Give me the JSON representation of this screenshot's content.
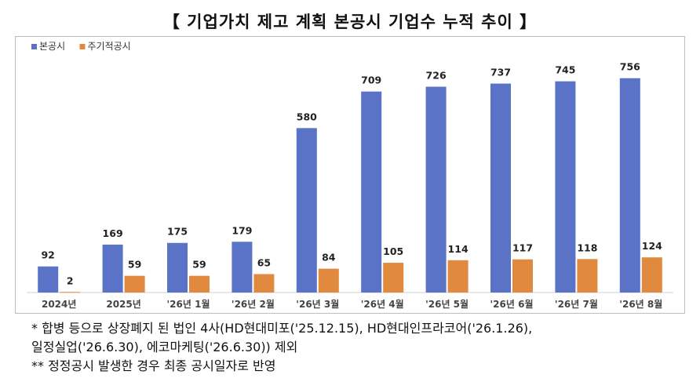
{
  "title": "【 기업가치 제고 계획 본공시 기업수 누적 추이 】",
  "chart_data": {
    "type": "bar",
    "title": "",
    "xlabel": "",
    "ylabel": "",
    "ylim": [
      0,
      800
    ],
    "grid": false,
    "legend_position": "top-left",
    "categories": [
      "2024년",
      "2025년",
      "'26년 1월",
      "'26년 2월",
      "'26년 3월",
      "'26년 4월",
      "'26년 5월",
      "'26년 6월",
      "'26년 7월",
      "'26년 8월"
    ],
    "series": [
      {
        "name": "본공시",
        "color": "#5b73c7",
        "values": [
          92,
          169,
          175,
          179,
          580,
          709,
          726,
          737,
          745,
          756
        ]
      },
      {
        "name": "주기적공시",
        "color": "#e0893f",
        "values": [
          2,
          59,
          59,
          65,
          84,
          105,
          114,
          117,
          118,
          124
        ]
      }
    ]
  },
  "notes": [
    "*  합병 등으로 상장폐지 된 법인 4사(HD현대미포('25.12.15), HD현대인프라코어('26.1.26),",
    "   일정실업('26.6.30), 에코마케팅('26.6.30)) 제외",
    "**  정정공시 발생한 경우 최종 공시일자로 반영"
  ]
}
